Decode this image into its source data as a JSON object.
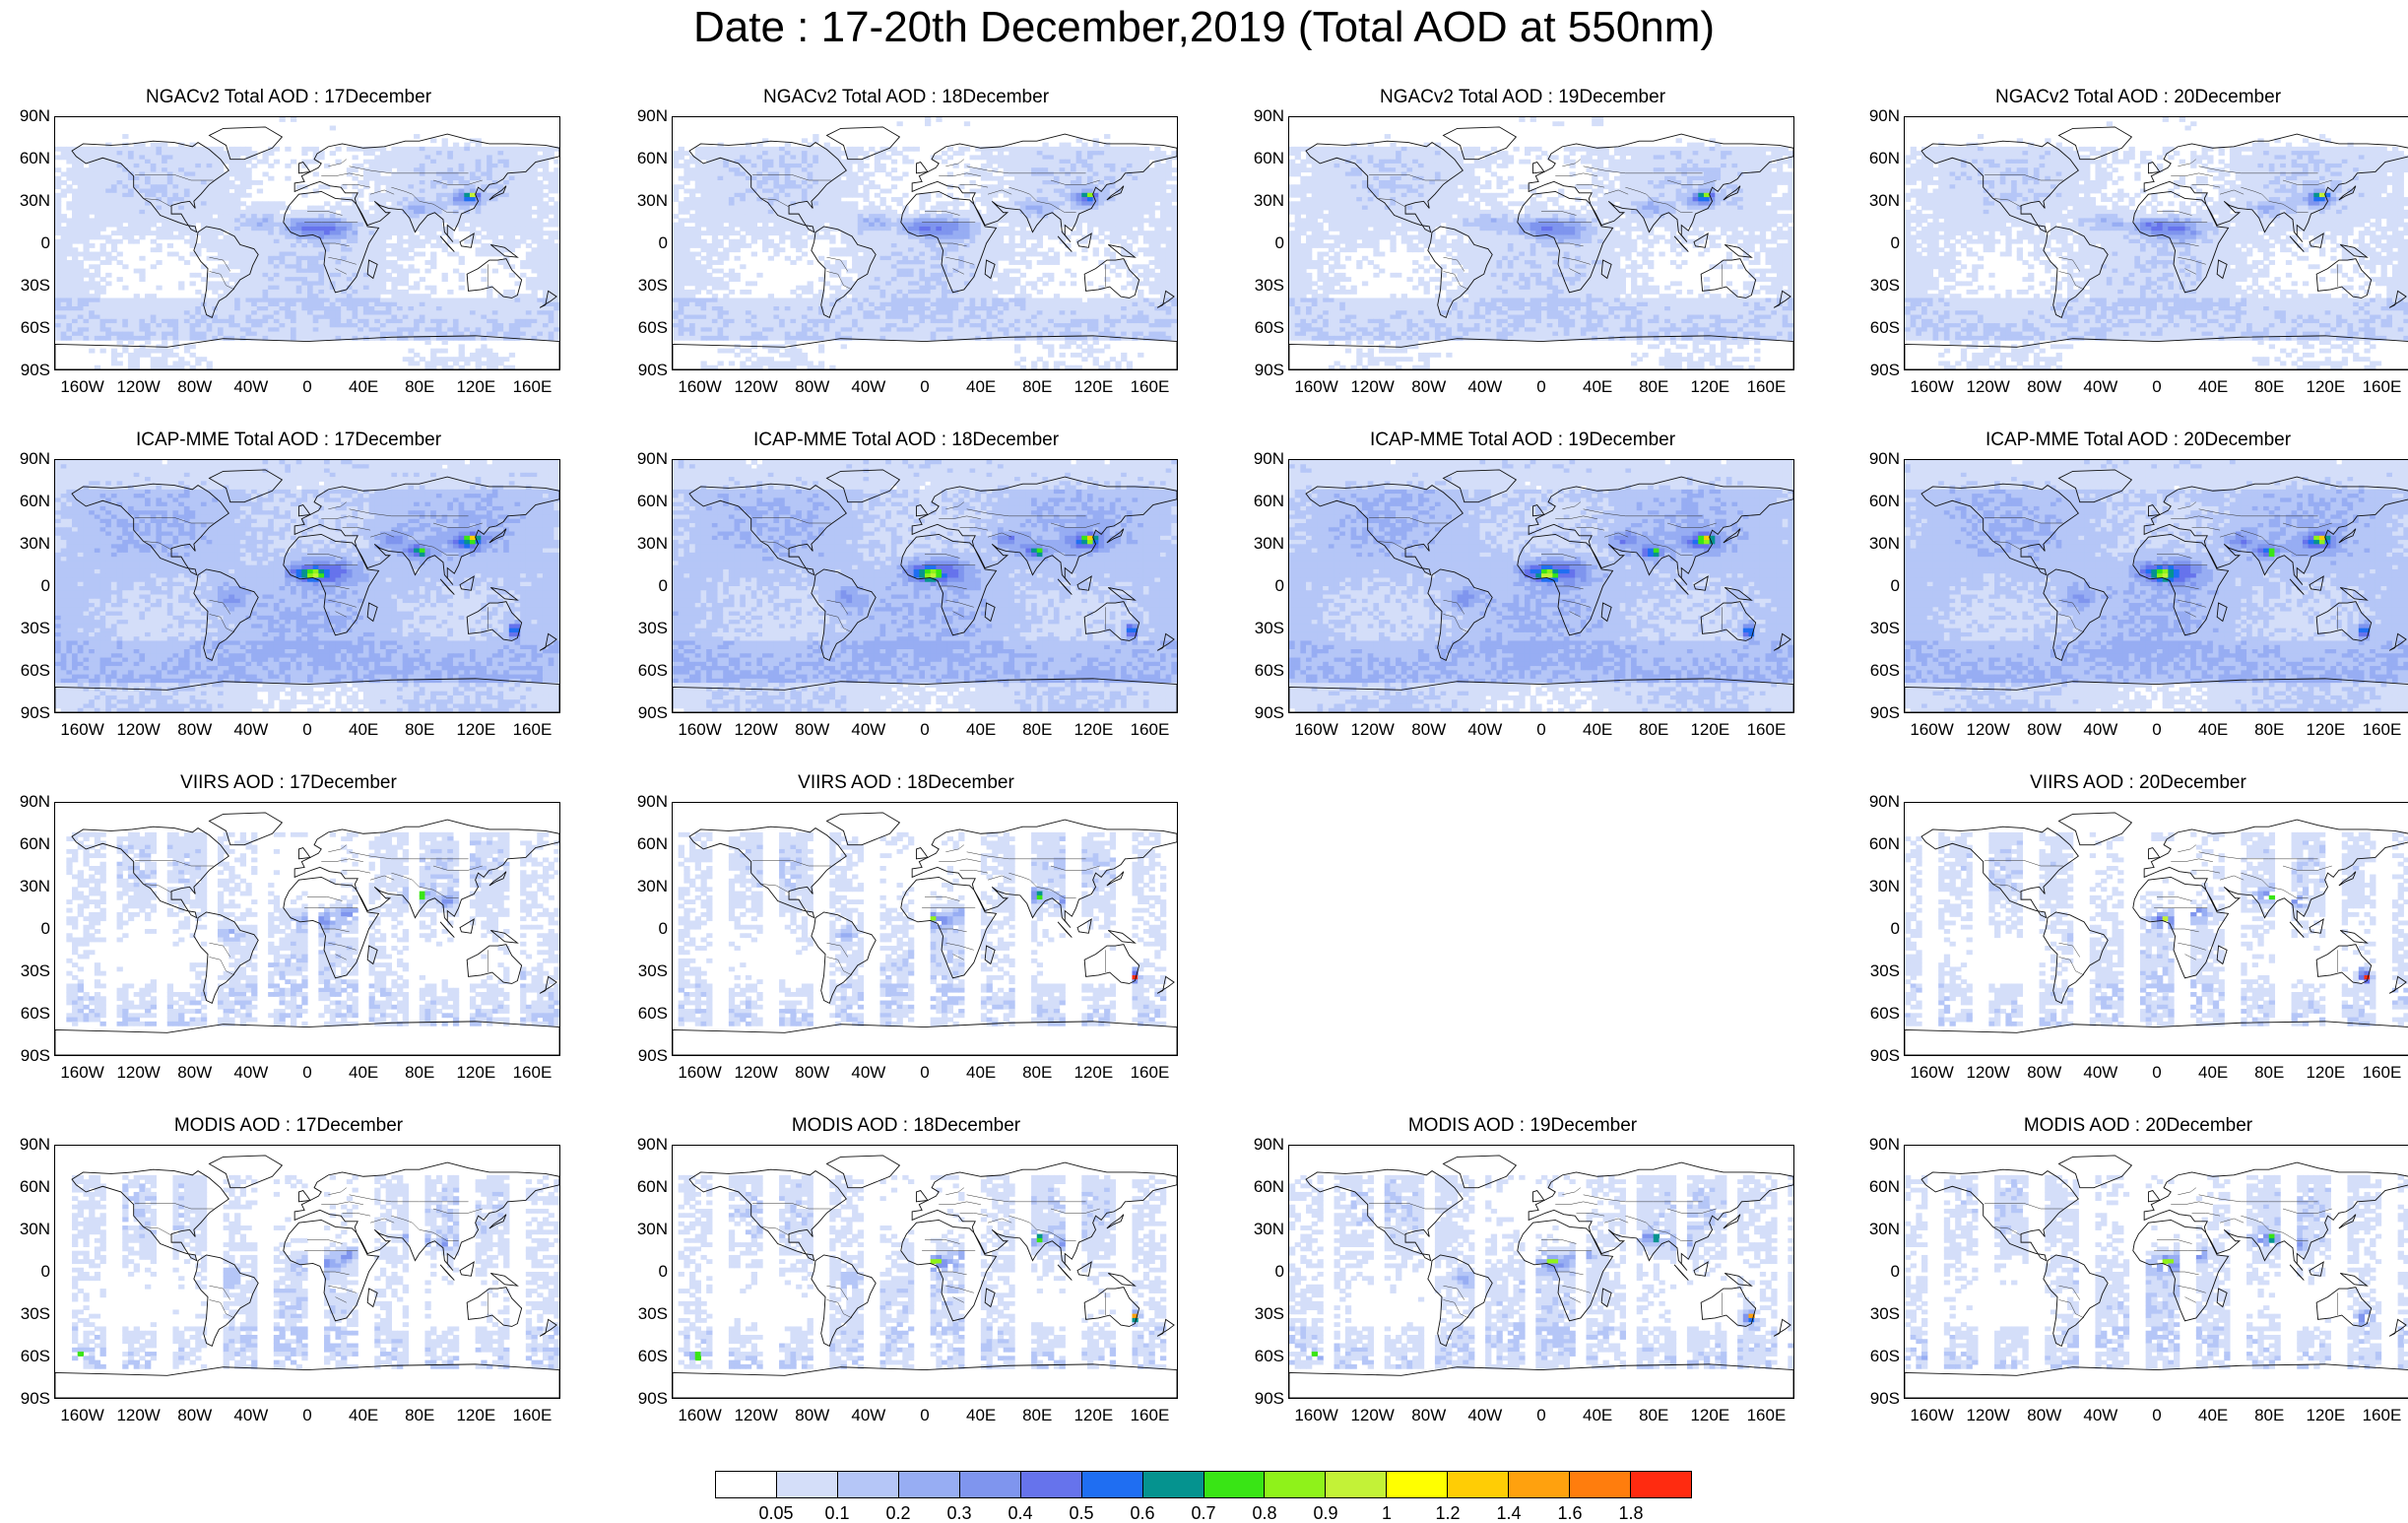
{
  "title": "Date : 17-20th December,2019 (Total AOD at 550nm)",
  "lat_labels": [
    "90N",
    "60N",
    "30N",
    "0",
    "30S",
    "60S",
    "90S"
  ],
  "lon_labels": [
    "160W",
    "120W",
    "80W",
    "40W",
    "0",
    "40E",
    "80E",
    "120E",
    "160E"
  ],
  "panels": [
    {
      "title": "NGACv2 Total AOD : 17December",
      "source": "ngac",
      "row": 0,
      "col": 0,
      "seed": 11
    },
    {
      "title": "NGACv2 Total AOD : 18December",
      "source": "ngac",
      "row": 0,
      "col": 1,
      "seed": 12
    },
    {
      "title": "NGACv2 Total AOD : 19December",
      "source": "ngac",
      "row": 0,
      "col": 2,
      "seed": 13
    },
    {
      "title": "NGACv2 Total AOD : 20December",
      "source": "ngac",
      "row": 0,
      "col": 3,
      "seed": 14
    },
    {
      "title": "ICAP-MME Total AOD : 17December",
      "source": "icap",
      "row": 1,
      "col": 0,
      "seed": 21
    },
    {
      "title": "ICAP-MME Total AOD : 18December",
      "source": "icap",
      "row": 1,
      "col": 1,
      "seed": 22
    },
    {
      "title": "ICAP-MME Total AOD : 19December",
      "source": "icap",
      "row": 1,
      "col": 2,
      "seed": 23
    },
    {
      "title": "ICAP-MME Total AOD : 20December",
      "source": "icap",
      "row": 1,
      "col": 3,
      "seed": 24
    },
    {
      "title": "VIIRS AOD : 17December",
      "source": "viirs",
      "row": 2,
      "col": 0,
      "seed": 31
    },
    {
      "title": "VIIRS AOD : 18December",
      "source": "viirs",
      "row": 2,
      "col": 1,
      "seed": 32
    },
    {
      "title": "VIIRS AOD : 20December",
      "source": "viirs",
      "row": 2,
      "col": 3,
      "seed": 34
    },
    {
      "title": "MODIS AOD : 17December",
      "source": "modis",
      "row": 3,
      "col": 0,
      "seed": 41
    },
    {
      "title": "MODIS AOD : 18December",
      "source": "modis",
      "row": 3,
      "col": 1,
      "seed": 42
    },
    {
      "title": "MODIS AOD : 19December",
      "source": "modis",
      "row": 3,
      "col": 2,
      "seed": 43
    },
    {
      "title": "MODIS AOD : 20December",
      "source": "modis",
      "row": 3,
      "col": 3,
      "seed": 44
    }
  ],
  "colorbar": {
    "labels": [
      "0.05",
      "0.1",
      "0.2",
      "0.3",
      "0.4",
      "0.5",
      "0.6",
      "0.7",
      "0.8",
      "0.9",
      "1",
      "1.2",
      "1.4",
      "1.6",
      "1.8"
    ],
    "colors": [
      "#ffffff",
      "#d4def9",
      "#b5c6f7",
      "#97adf3",
      "#7f95ee",
      "#6673ec",
      "#1f6ef2",
      "#05938f",
      "#39e515",
      "#8ff21a",
      "#c3f237",
      "#ffff00",
      "#ffcd05",
      "#ffa10e",
      "#ff7d0d",
      "#ff2b10"
    ]
  }
}
